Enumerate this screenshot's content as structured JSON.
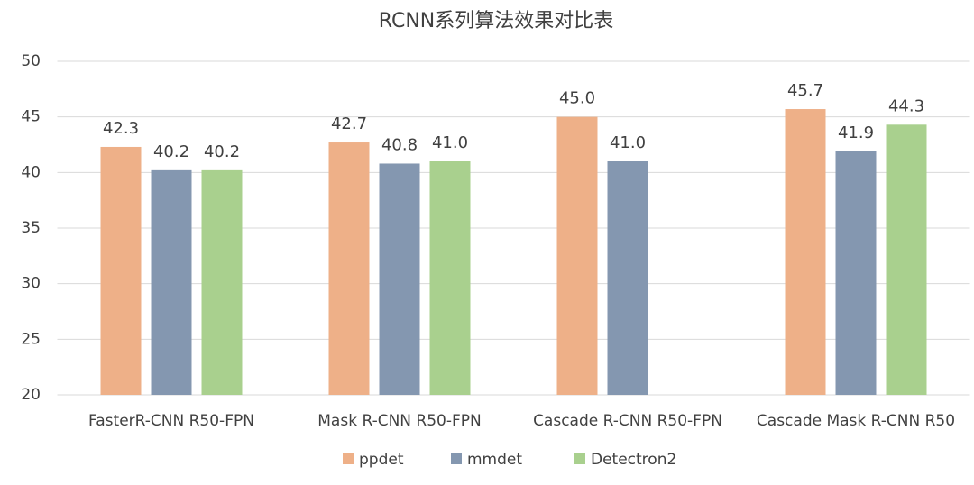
{
  "chart_data": {
    "type": "bar",
    "title": "RCNN系列算法效果对比表",
    "categories": [
      "FasterR-CNN R50-FPN",
      "Mask R-CNN R50-FPN",
      "Cascade R-CNN R50-FPN",
      "Cascade Mask R-CNN R50"
    ],
    "series": [
      {
        "name": "ppdet",
        "color": "#eeb088",
        "values": [
          42.3,
          42.7,
          45,
          45.7
        ],
        "value_labels": [
          "42.3",
          "42.7",
          "45.0",
          "45.7"
        ]
      },
      {
        "name": "mmdet",
        "color": "#8497b0",
        "values": [
          40.2,
          40.8,
          41,
          41.9
        ],
        "value_labels": [
          "40.2",
          "40.8",
          "41.0",
          "41.9"
        ]
      },
      {
        "name": "Detectron2",
        "color": "#a9d08e",
        "values": [
          40.2,
          41,
          null,
          44.3
        ],
        "value_labels": [
          "40.2",
          "41.0",
          null,
          "44.3"
        ]
      }
    ],
    "ylim": [
      20,
      50
    ],
    "yticks": [
      20,
      25,
      30,
      35,
      40,
      45,
      50
    ],
    "grid": true,
    "legend": "bottom"
  }
}
